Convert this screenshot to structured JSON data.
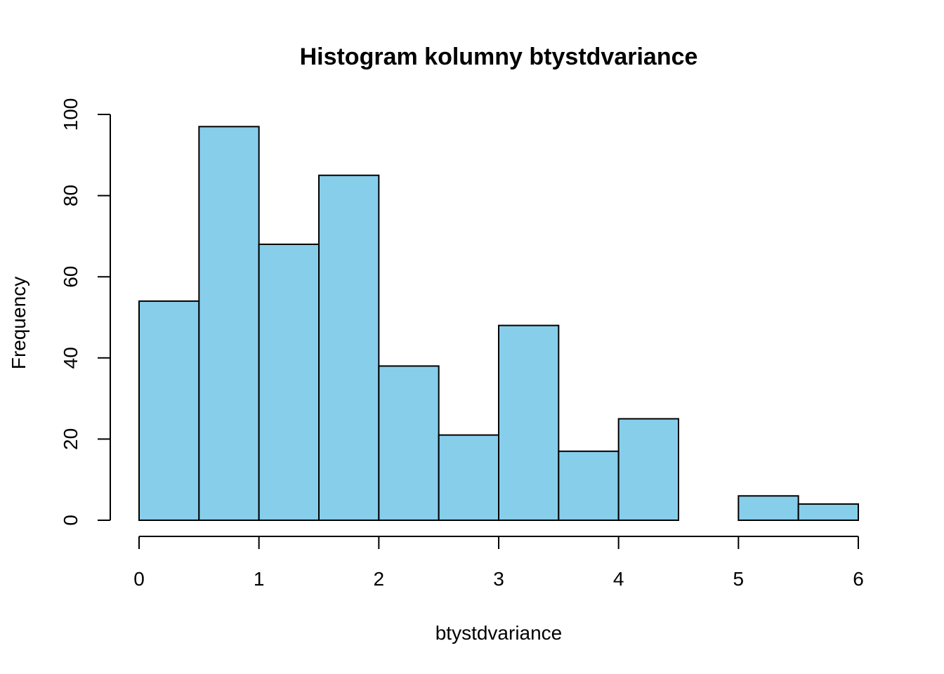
{
  "chart_data": {
    "type": "bar",
    "title": "Histogram kolumny btystdvariance",
    "xlabel": "btystdvariance",
    "ylabel": "Frequency",
    "bin_edges": [
      0,
      0.5,
      1,
      1.5,
      2,
      2.5,
      3,
      3.5,
      4,
      4.5,
      5,
      5.5,
      6
    ],
    "values": [
      54,
      97,
      68,
      85,
      38,
      21,
      48,
      17,
      25,
      0,
      6,
      4
    ],
    "x_ticks": [
      "0",
      "1",
      "2",
      "3",
      "4",
      "5",
      "6"
    ],
    "y_ticks": [
      "0",
      "20",
      "40",
      "60",
      "80",
      "100"
    ],
    "xlim": [
      0,
      6
    ],
    "ylim": [
      0,
      100
    ],
    "bar_color": "#87CEEB",
    "grid": false,
    "legend": "none"
  }
}
